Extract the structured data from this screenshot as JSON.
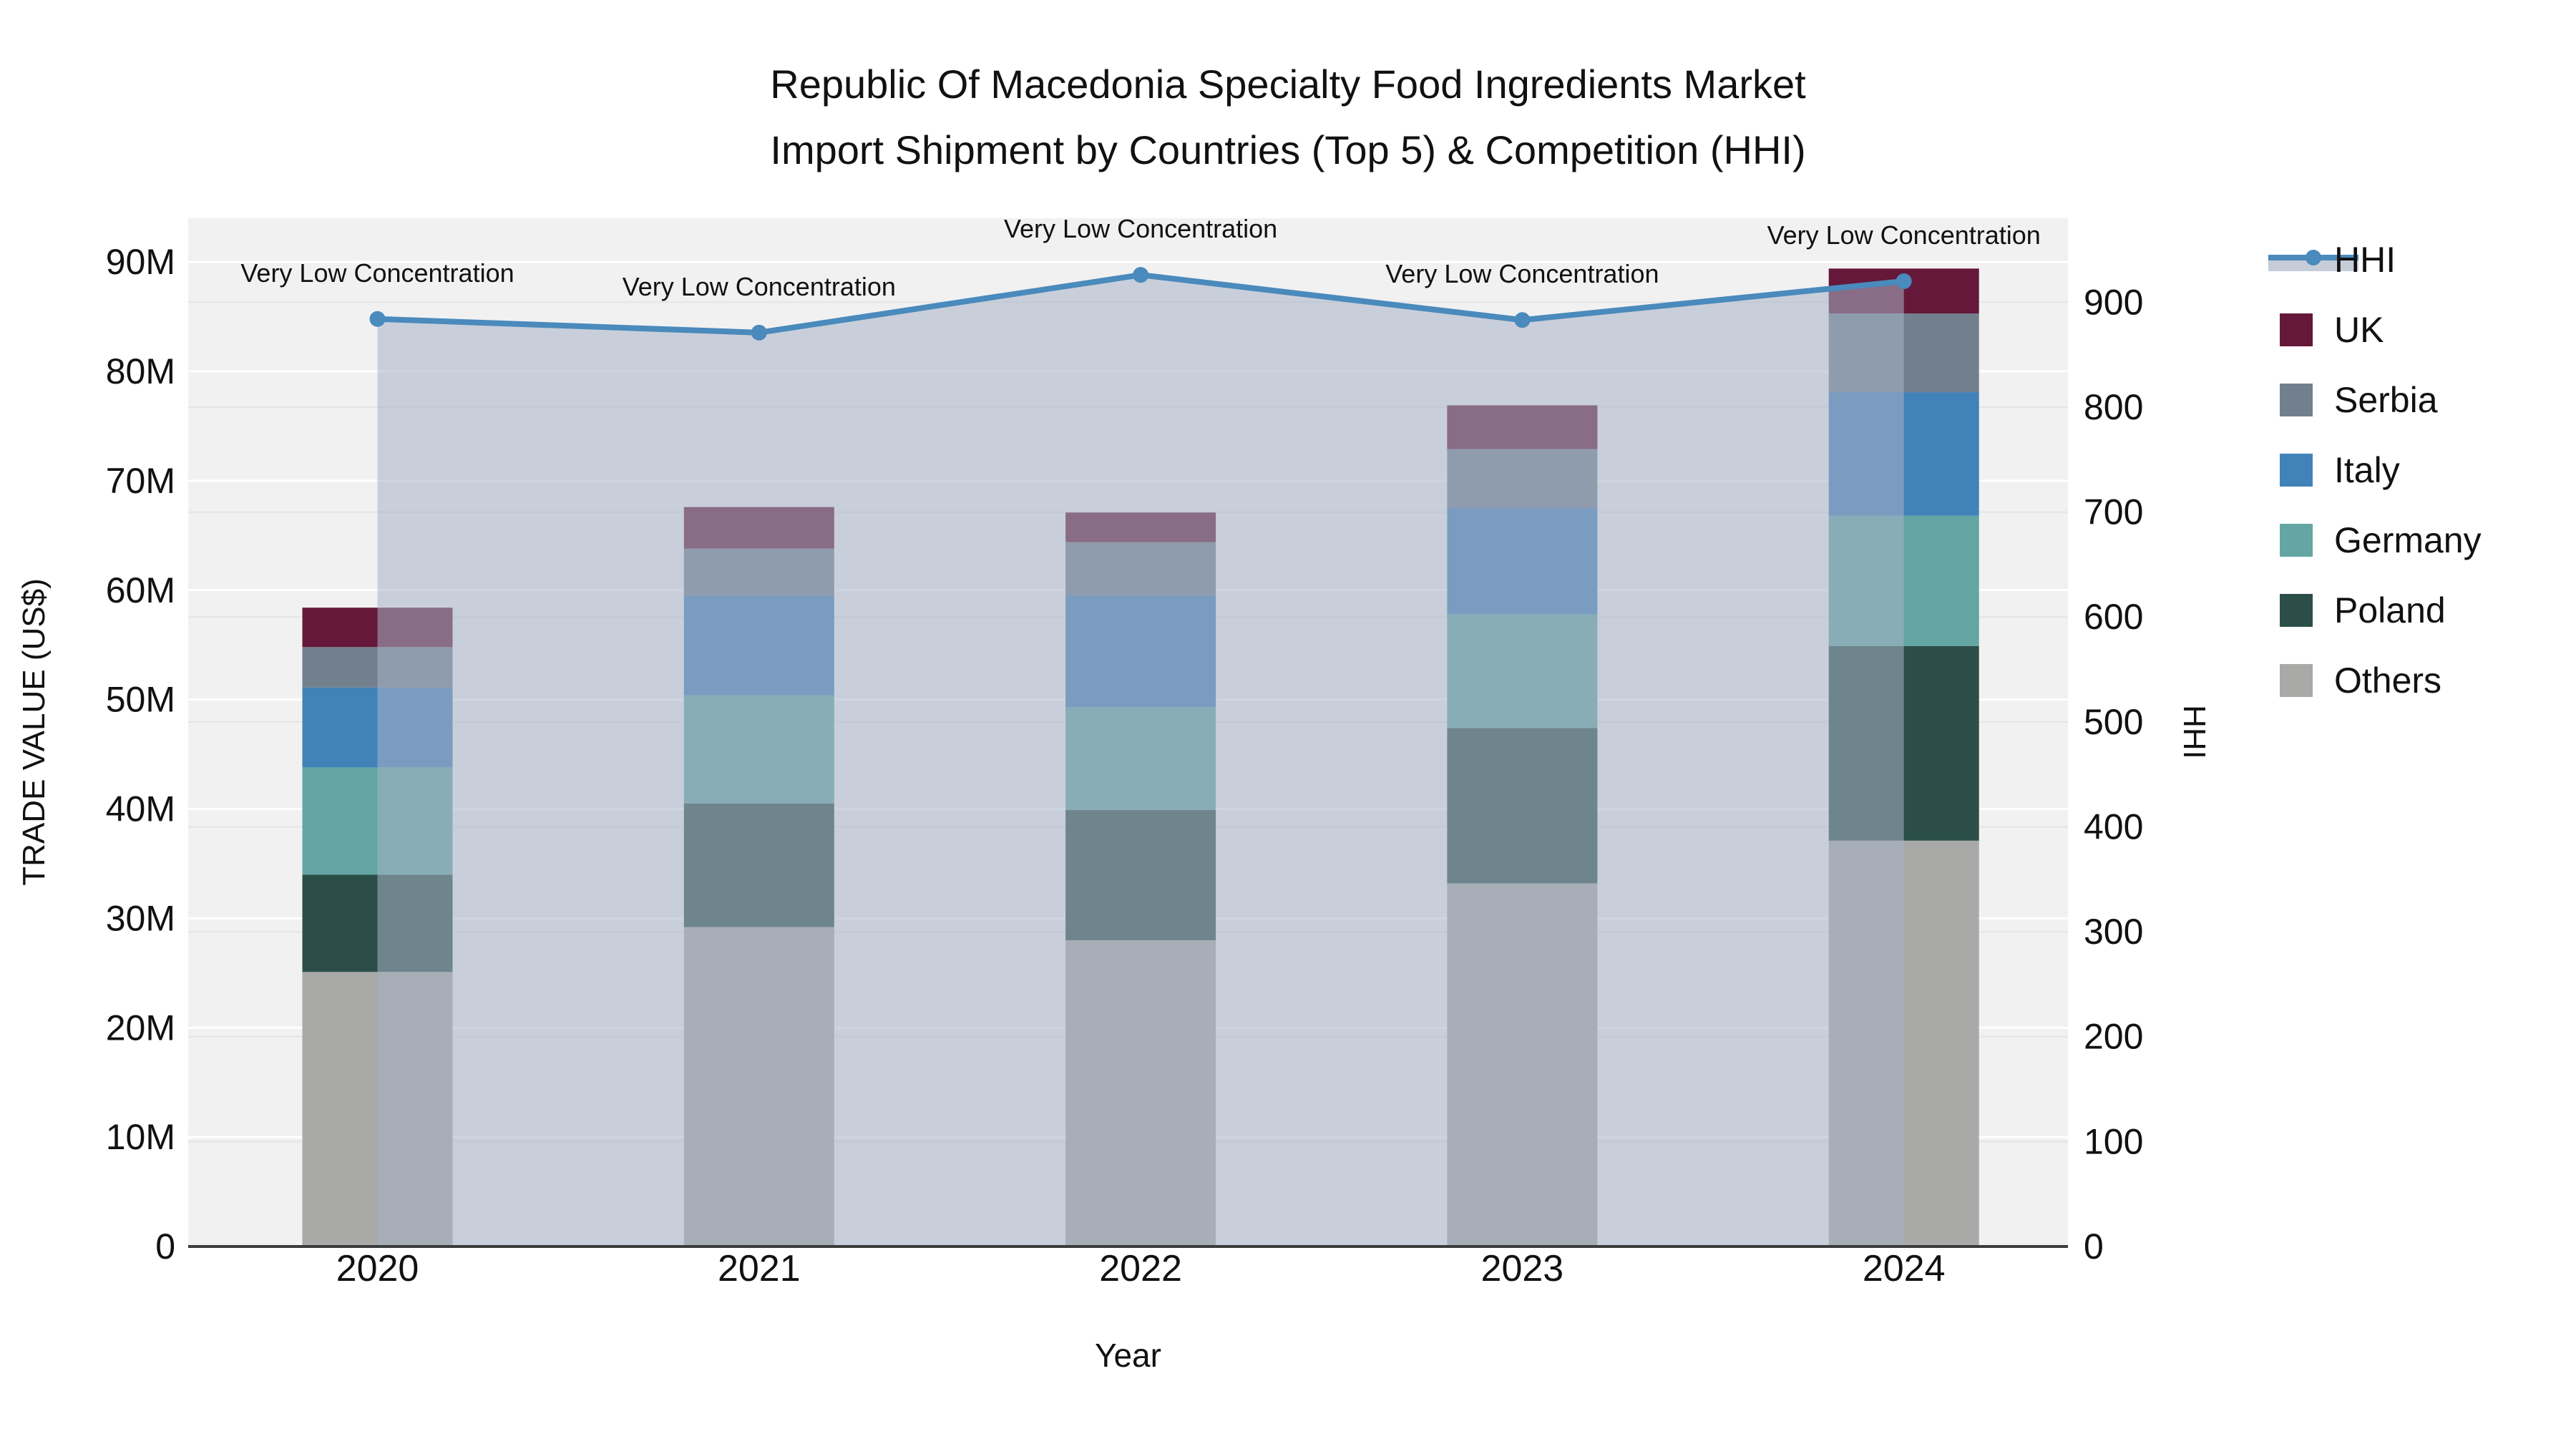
{
  "title": {
    "line1": "Republic Of Macedonia Specialty Food Ingredients Market",
    "line2": "Import Shipment by Countries (Top 5) & Competition (HHI)"
  },
  "colors": {
    "plot_bg": "#F1F1F2",
    "grid_primary": "#FFFFFF",
    "grid_secondary": "rgba(0,0,0,0.05)",
    "axis_line": "#3B3B3B",
    "text": "#111111",
    "hhi_line": "#4A8ABC",
    "hhi_area_fill": "rgba(168,178,198,0.55)",
    "legend_band": "#C7CDD8"
  },
  "chart_data": {
    "type": "combo-stacked-bar-line",
    "categories": [
      "2020",
      "2021",
      "2022",
      "2023",
      "2024"
    ],
    "xlabel": "Year",
    "bar_axis": {
      "title": "TRADE VALUE (US$)",
      "tick_labels": [
        "0",
        "10M",
        "20M",
        "30M",
        "40M",
        "50M",
        "60M",
        "70M",
        "80M",
        "90M"
      ],
      "tick_values_musd": [
        0,
        10,
        20,
        30,
        40,
        50,
        60,
        70,
        80,
        90
      ],
      "max_musd": 94
    },
    "line_axis": {
      "title": "HHI",
      "tick_labels": [
        "0",
        "100",
        "200",
        "300",
        "400",
        "500",
        "600",
        "700",
        "800",
        "900"
      ],
      "tick_values": [
        0,
        100,
        200,
        300,
        400,
        500,
        600,
        700,
        800,
        900
      ],
      "max": 980
    },
    "series": [
      {
        "name": "Others",
        "color": "#A9A9A7",
        "values_musd": [
          25.1,
          29.2,
          28.0,
          33.2,
          37.1
        ]
      },
      {
        "name": "Poland",
        "color": "#2B4E48",
        "values_musd": [
          8.9,
          11.3,
          11.9,
          14.2,
          17.8
        ]
      },
      {
        "name": "Germany",
        "color": "#63A6A3",
        "values_musd": [
          9.8,
          9.9,
          9.4,
          10.4,
          11.9
        ]
      },
      {
        "name": "Italy",
        "color": "#4182B8",
        "values_musd": [
          7.3,
          9.1,
          10.2,
          9.7,
          11.3
        ]
      },
      {
        "name": "Serbia",
        "color": "#72808E",
        "values_musd": [
          3.7,
          4.3,
          4.9,
          5.4,
          7.2
        ]
      },
      {
        "name": "UK",
        "color": "#651839",
        "values_musd": [
          3.6,
          3.8,
          2.7,
          4.0,
          4.1
        ]
      }
    ],
    "bar_totals_musd": [
      58.4,
      67.6,
      67.1,
      76.9,
      89.4
    ],
    "line": {
      "name": "HHI",
      "values": [
        884,
        871,
        926,
        883,
        920
      ],
      "color": "#4A8ABC",
      "marker_radius": 11
    },
    "annotations": [
      "Very Low Concentration",
      "Very Low Concentration",
      "Very Low Concentration",
      "Very Low Concentration",
      "Very Low Concentration"
    ],
    "legend": [
      {
        "label": "HHI",
        "type": "line",
        "color": "#4A8ABC"
      },
      {
        "label": "UK",
        "type": "swatch",
        "color": "#651839"
      },
      {
        "label": "Serbia",
        "type": "swatch",
        "color": "#72808E"
      },
      {
        "label": "Italy",
        "type": "swatch",
        "color": "#4182B8"
      },
      {
        "label": "Germany",
        "type": "swatch",
        "color": "#63A6A3"
      },
      {
        "label": "Poland",
        "type": "swatch",
        "color": "#2B4E48"
      },
      {
        "label": "Others",
        "type": "swatch",
        "color": "#A9A9A7"
      }
    ]
  }
}
